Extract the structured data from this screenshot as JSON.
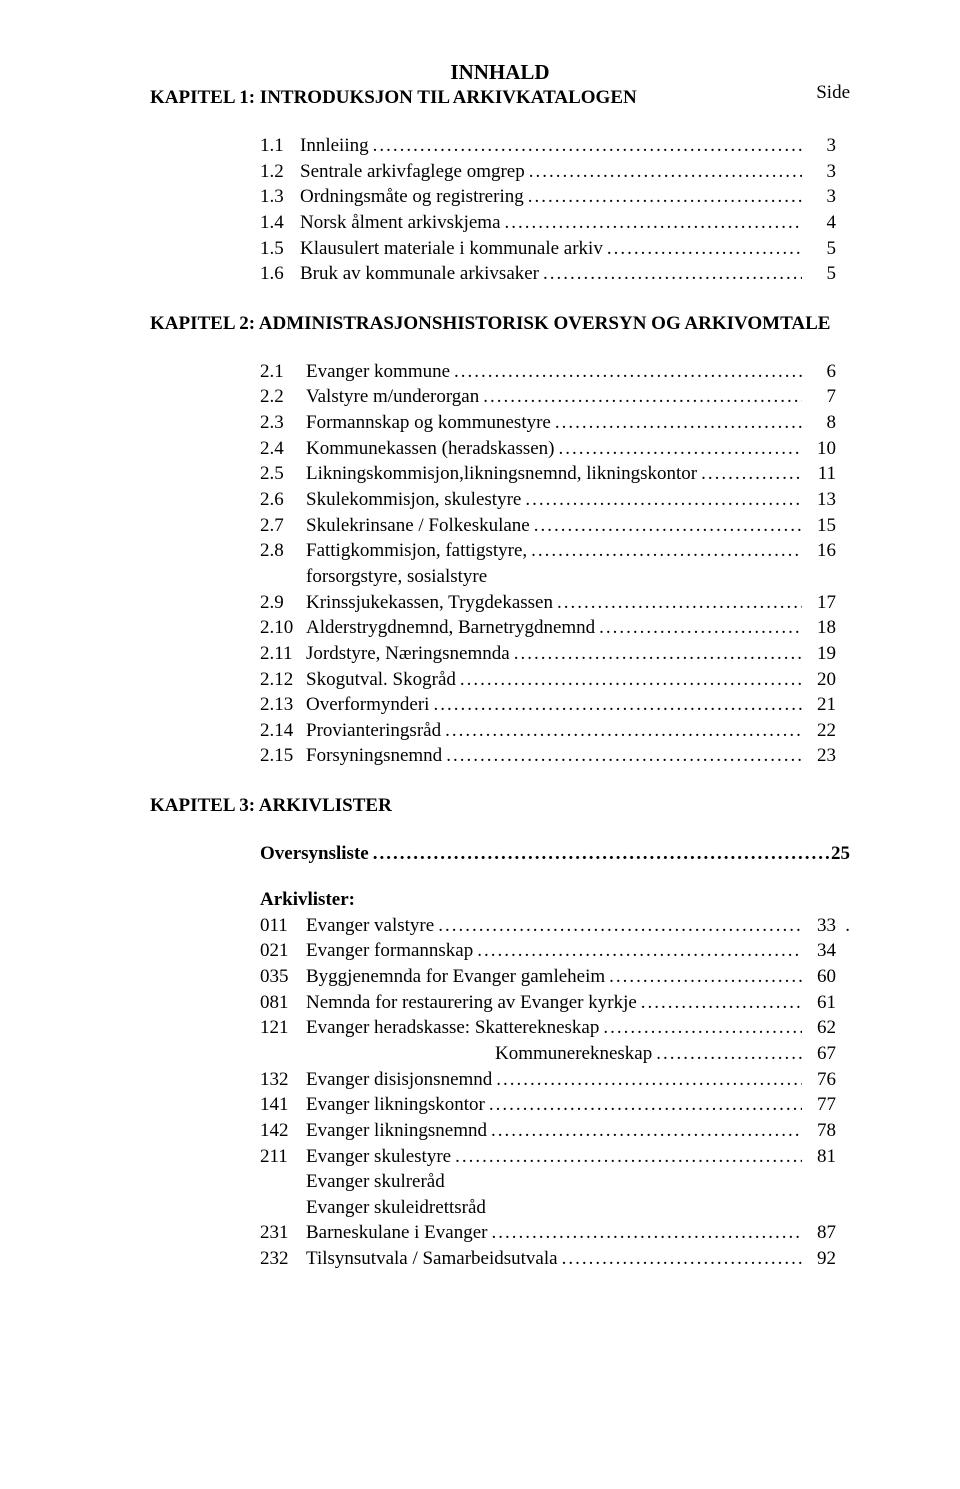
{
  "title": "INNHALD",
  "side_label": "Side",
  "chapter1": {
    "heading": "KAPITEL 1: INTRODUKSJON TIL ARKIVKATALOGEN",
    "items": [
      {
        "num": "1.1",
        "label": "Innleiing",
        "page": "3"
      },
      {
        "num": "1.2",
        "label": "Sentrale arkivfaglege omgrep",
        "page": "3"
      },
      {
        "num": "1.3",
        "label": "Ordningsmåte og registrering",
        "page": "3"
      },
      {
        "num": "1.4",
        "label": "Norsk ålment arkivskjema",
        "page": "4"
      },
      {
        "num": "1.5",
        "label": "Klausulert materiale i kommunale arkiv",
        "page": "5"
      },
      {
        "num": "1.6",
        "label": "Bruk av kommunale arkivsaker",
        "page": "5"
      }
    ]
  },
  "chapter2": {
    "heading": "KAPITEL 2: ADMINISTRASJONSHISTORISK OVERSYN OG ARKIVOMTALE",
    "items": [
      {
        "num": "2.1",
        "label": "Evanger kommune",
        "page": "6"
      },
      {
        "num": "2.2",
        "label": "Valstyre m/underorgan",
        "page": "7"
      },
      {
        "num": "2.3",
        "label": "Formannskap og kommunestyre",
        "page": "8"
      },
      {
        "num": "2.4",
        "label": "Kommunekassen (heradskassen)",
        "page": "10"
      },
      {
        "num": "2.5",
        "label": "Likningskommisjon,likningsnemnd, likningskontor",
        "page": "11"
      },
      {
        "num": "2.6",
        "label": "Skulekommisjon, skulestyre",
        "page": "13"
      },
      {
        "num": "2.7",
        "label": "Skulekrinsane / Folkeskulane",
        "page": "15"
      },
      {
        "num": "2.8",
        "label": "Fattigkommisjon, fattigstyre,",
        "page": "16",
        "sub": "forsorgstyre, sosialstyre"
      },
      {
        "num": "2.9",
        "label": "Krinssjukekassen, Trygdekassen",
        "page": "17"
      },
      {
        "num": "2.10",
        "label": "Alderstrygdnemnd,  Barnetrygdnemnd",
        "page": "18"
      },
      {
        "num": "2.11",
        "label": "Jordstyre, Næringsnemnda",
        "page": "19"
      },
      {
        "num": "2.12",
        "label": "Skogutval.  Skogråd",
        "page": "20"
      },
      {
        "num": "2.13",
        "label": "Overformynderi",
        "page": "21"
      },
      {
        "num": "2.14",
        "label": "Provianteringsråd",
        "page": "22"
      },
      {
        "num": "2.15",
        "label": "Forsyningsnemnd",
        "page": "23"
      }
    ]
  },
  "chapter3": {
    "heading": "KAPITEL 3: ARKIVLISTER",
    "oversyn": {
      "label": "Oversynsliste",
      "page": "25"
    },
    "arkiv_heading": "Arkivlister:",
    "items": [
      {
        "num": "011",
        "label": "Evanger valstyre",
        "page": "33",
        "trail": "."
      },
      {
        "num": "021",
        "label": "Evanger formannskap",
        "page": "34"
      },
      {
        "num": "035",
        "label": "Byggjenemnda for Evanger gamleheim",
        "page": "60"
      },
      {
        "num": "081",
        "label": "Nemnda for restaurering av Evanger kyrkje",
        "page": "61"
      },
      {
        "num": "121",
        "label": "Evanger heradskasse: Skatterekneskap",
        "page": "62",
        "sub_deep": "Kommunerekneskap",
        "sub_page": "67"
      },
      {
        "num": "132",
        "label": "Evanger disisjonsnemnd",
        "page": "76"
      },
      {
        "num": "141",
        "label": "Evanger likningskontor",
        "page": "77"
      },
      {
        "num": "142",
        "label": "Evanger likningsnemnd",
        "page": "78"
      },
      {
        "num": "211",
        "label": "Evanger skulestyre",
        "page": "81",
        "sub_lines": [
          "Evanger skulreråd",
          "Evanger skuleidrettsråd"
        ]
      },
      {
        "num": "231",
        "label": "Barneskulane i Evanger",
        "page": "87"
      },
      {
        "num": "232",
        "label": "Tilsynsutvala / Samarbeidsutvala",
        "page": "92"
      }
    ]
  }
}
